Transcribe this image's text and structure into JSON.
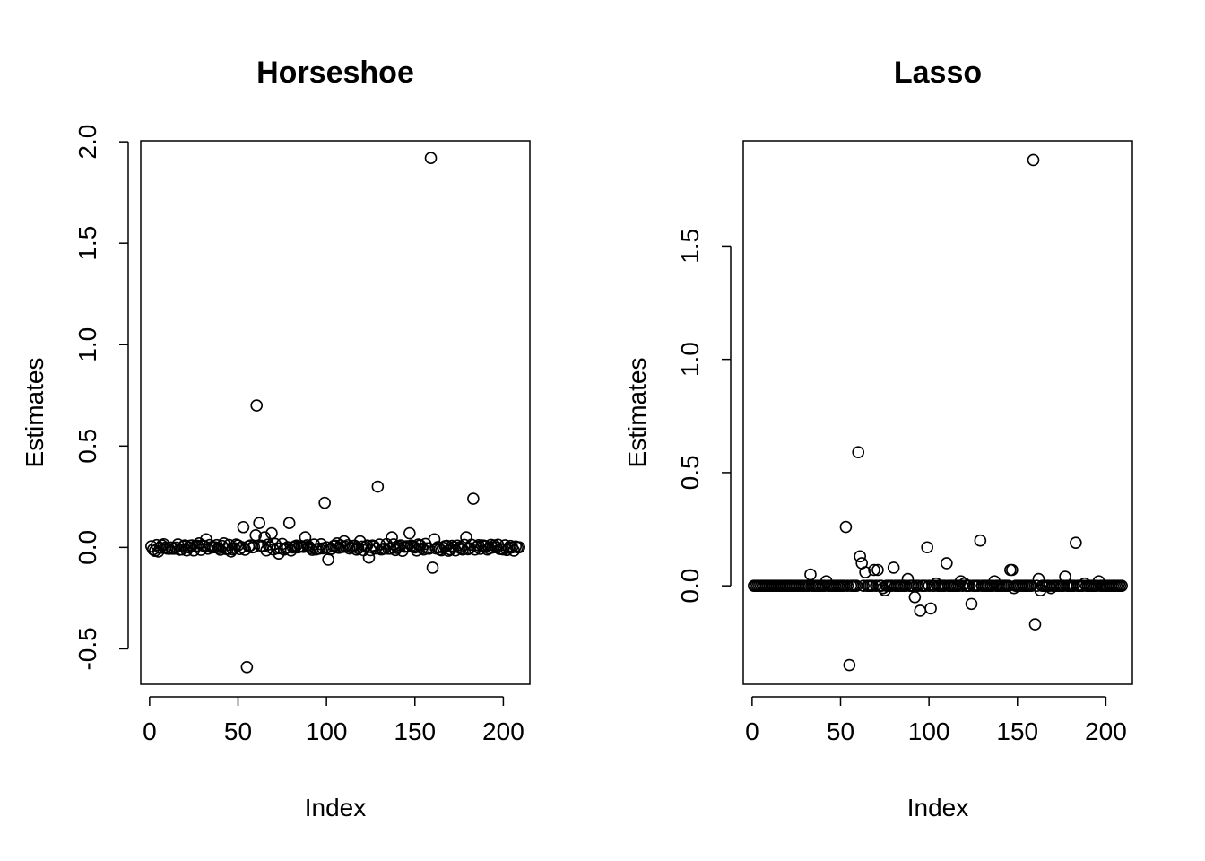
{
  "chart_data": [
    {
      "type": "scatter",
      "title": "Horseshoe",
      "xlabel": "Index",
      "ylabel": "Estimates",
      "xlim": [
        -5,
        215
      ],
      "ylim": [
        -0.675,
        2.005
      ],
      "xticks": [
        0,
        50,
        100,
        150,
        200
      ],
      "xtick_labels": [
        "0",
        "50",
        "100",
        "150",
        "200"
      ],
      "yticks": [
        -0.5,
        0.0,
        0.5,
        1.0,
        1.5,
        2.0
      ],
      "ytick_labels": [
        "-0.5",
        "0.0",
        "0.5",
        "1.0",
        "1.5",
        "2.0"
      ],
      "grid": false,
      "marker": "open-circle",
      "n_points": 209,
      "points": [
        {
          "x": 2,
          "y": -0.01
        },
        {
          "x": 5,
          "y": -0.02
        },
        {
          "x": 7,
          "y": 0.01
        },
        {
          "x": 12,
          "y": 0.0
        },
        {
          "x": 18,
          "y": -0.01
        },
        {
          "x": 24,
          "y": 0.01
        },
        {
          "x": 28,
          "y": 0.02
        },
        {
          "x": 32,
          "y": 0.04
        },
        {
          "x": 36,
          "y": 0.0
        },
        {
          "x": 42,
          "y": 0.02
        },
        {
          "x": 46,
          "y": -0.02
        },
        {
          "x": 50,
          "y": 0.01
        },
        {
          "x": 53,
          "y": 0.1
        },
        {
          "x": 55,
          "y": -0.59
        },
        {
          "x": 58,
          "y": 0.0
        },
        {
          "x": 60,
          "y": 0.06
        },
        {
          "x": 60.5,
          "y": 0.7
        },
        {
          "x": 62,
          "y": 0.12
        },
        {
          "x": 65,
          "y": 0.05
        },
        {
          "x": 69,
          "y": 0.07
        },
        {
          "x": 73,
          "y": -0.03
        },
        {
          "x": 79,
          "y": 0.12
        },
        {
          "x": 84,
          "y": 0.0
        },
        {
          "x": 88,
          "y": 0.05
        },
        {
          "x": 94,
          "y": -0.01
        },
        {
          "x": 99,
          "y": 0.22
        },
        {
          "x": 101,
          "y": -0.06
        },
        {
          "x": 106,
          "y": 0.02
        },
        {
          "x": 110,
          "y": 0.03
        },
        {
          "x": 114,
          "y": 0.0
        },
        {
          "x": 119,
          "y": 0.03
        },
        {
          "x": 124,
          "y": -0.05
        },
        {
          "x": 129,
          "y": 0.3
        },
        {
          "x": 131,
          "y": -0.01
        },
        {
          "x": 137,
          "y": 0.05
        },
        {
          "x": 142,
          "y": 0.01
        },
        {
          "x": 147,
          "y": 0.07
        },
        {
          "x": 153,
          "y": 0.01
        },
        {
          "x": 159,
          "y": 1.92
        },
        {
          "x": 160,
          "y": -0.1
        },
        {
          "x": 161,
          "y": 0.04
        },
        {
          "x": 164,
          "y": -0.01
        },
        {
          "x": 170,
          "y": -0.01
        },
        {
          "x": 175,
          "y": 0.0
        },
        {
          "x": 179,
          "y": 0.05
        },
        {
          "x": 183,
          "y": 0.24
        },
        {
          "x": 188,
          "y": 0.01
        },
        {
          "x": 195,
          "y": 0.01
        },
        {
          "x": 200,
          "y": -0.01
        },
        {
          "x": 205,
          "y": 0.0
        },
        {
          "x": 208,
          "y": 0.0
        }
      ]
    },
    {
      "type": "scatter",
      "title": "Lasso",
      "xlabel": "Index",
      "ylabel": "Estimates",
      "xlim": [
        -5,
        215
      ],
      "ylim": [
        -0.435,
        1.965
      ],
      "xticks": [
        0,
        50,
        100,
        150,
        200
      ],
      "xtick_labels": [
        "0",
        "50",
        "100",
        "150",
        "200"
      ],
      "yticks": [
        0.0,
        0.5,
        1.0,
        1.5
      ],
      "ytick_labels": [
        "0.0",
        "0.5",
        "1.0",
        "1.5"
      ],
      "grid": false,
      "marker": "open-circle",
      "n_points": 209,
      "points": [
        {
          "x": 33,
          "y": 0.05
        },
        {
          "x": 42,
          "y": 0.02
        },
        {
          "x": 53,
          "y": 0.26
        },
        {
          "x": 55,
          "y": -0.35
        },
        {
          "x": 57,
          "y": 0.0
        },
        {
          "x": 60,
          "y": 0.59
        },
        {
          "x": 61,
          "y": 0.13
        },
        {
          "x": 62,
          "y": 0.1
        },
        {
          "x": 64,
          "y": 0.06
        },
        {
          "x": 69,
          "y": 0.07
        },
        {
          "x": 71,
          "y": 0.07
        },
        {
          "x": 74,
          "y": -0.01
        },
        {
          "x": 75,
          "y": -0.02
        },
        {
          "x": 80,
          "y": 0.08
        },
        {
          "x": 88,
          "y": 0.03
        },
        {
          "x": 92,
          "y": -0.05
        },
        {
          "x": 95,
          "y": -0.11
        },
        {
          "x": 99,
          "y": 0.17
        },
        {
          "x": 101,
          "y": -0.1
        },
        {
          "x": 104,
          "y": 0.01
        },
        {
          "x": 110,
          "y": 0.1
        },
        {
          "x": 118,
          "y": 0.02
        },
        {
          "x": 120,
          "y": 0.01
        },
        {
          "x": 124,
          "y": -0.08
        },
        {
          "x": 129,
          "y": 0.2
        },
        {
          "x": 137,
          "y": 0.02
        },
        {
          "x": 146,
          "y": 0.07
        },
        {
          "x": 147,
          "y": 0.07
        },
        {
          "x": 148,
          "y": -0.01
        },
        {
          "x": 160,
          "y": -0.17
        },
        {
          "x": 162,
          "y": 0.03
        },
        {
          "x": 163,
          "y": -0.02
        },
        {
          "x": 169,
          "y": -0.01
        },
        {
          "x": 177,
          "y": 0.04
        },
        {
          "x": 183,
          "y": 0.19
        },
        {
          "x": 188,
          "y": 0.01
        },
        {
          "x": 196,
          "y": 0.02
        },
        {
          "x": 159,
          "y": 1.88
        }
      ]
    }
  ]
}
